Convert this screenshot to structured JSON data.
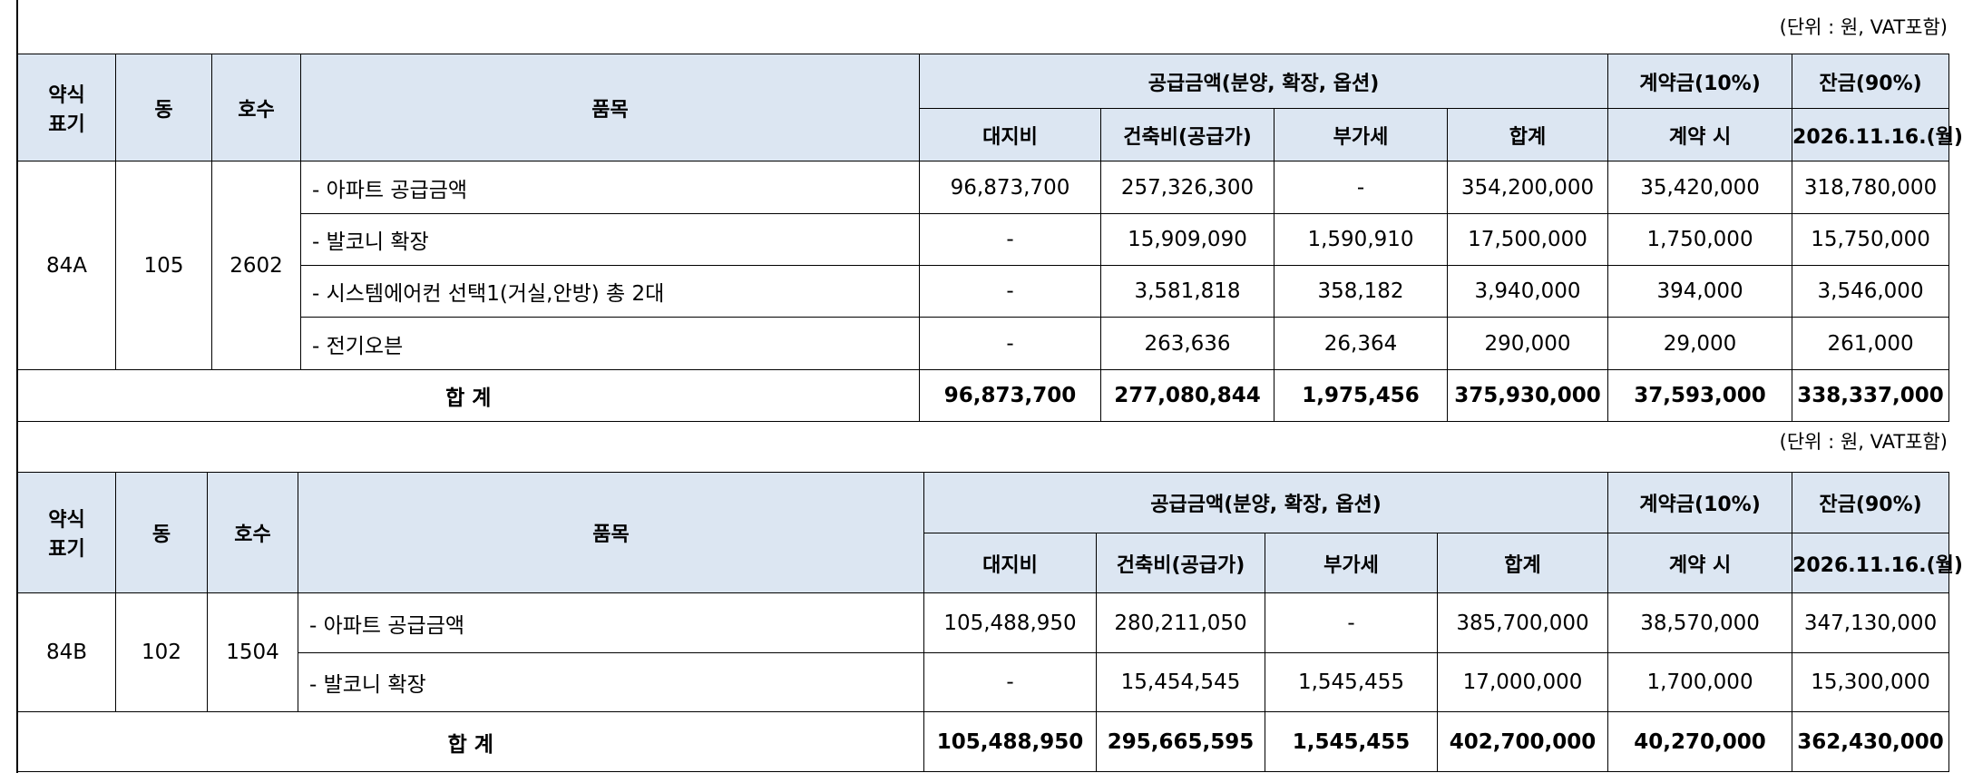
{
  "tables": [
    {
      "unit_note": "(단위 : 원, VAT포함)",
      "columns": {
        "type": [
          "약식",
          "표기"
        ],
        "dong": "동",
        "ho": "호수",
        "item": "품목",
        "supply": "공급금액(분양, 확장, 옵션)",
        "deposit": "계약금(10%)",
        "balance": "잔금(90%)",
        "sub": [
          "대지비",
          "건축비(공급가)",
          "부가세",
          "합계",
          "계약 시",
          "2026.11.16.(월)"
        ]
      },
      "unit": {
        "type": "84A",
        "dong": "105",
        "ho": "2602"
      },
      "rows": [
        {
          "item": "- 아파트 공급금액",
          "values": [
            "96,873,700",
            "257,326,300",
            "-",
            "354,200,000",
            "35,420,000",
            "318,780,000"
          ]
        },
        {
          "item": "- 발코니 확장",
          "values": [
            "-",
            "15,909,090",
            "1,590,910",
            "17,500,000",
            "1,750,000",
            "15,750,000"
          ]
        },
        {
          "item": "- 시스템에어컨 선택1(거실,안방) 총 2대",
          "values": [
            "-",
            "3,581,818",
            "358,182",
            "3,940,000",
            "394,000",
            "3,546,000"
          ]
        },
        {
          "item": "- 전기오븐",
          "values": [
            "-",
            "263,636",
            "26,364",
            "290,000",
            "29,000",
            "261,000"
          ]
        }
      ],
      "total": {
        "label": "합 계",
        "values": [
          "96,873,700",
          "277,080,844",
          "1,975,456",
          "375,930,000",
          "37,593,000",
          "338,337,000"
        ]
      }
    },
    {
      "unit_note": "(단위 : 원, VAT포함)",
      "columns": {
        "type": [
          "약식",
          "표기"
        ],
        "dong": "동",
        "ho": "호수",
        "item": "품목",
        "supply": "공급금액(분양, 확장, 옵션)",
        "deposit": "계약금(10%)",
        "balance": "잔금(90%)",
        "sub": [
          "대지비",
          "건축비(공급가)",
          "부가세",
          "합계",
          "계약 시",
          "2026.11.16.(월)"
        ]
      },
      "unit": {
        "type": "84B",
        "dong": "102",
        "ho": "1504"
      },
      "rows": [
        {
          "item": "- 아파트 공급금액",
          "values": [
            "105,488,950",
            "280,211,050",
            "-",
            "385,700,000",
            "38,570,000",
            "347,130,000"
          ]
        },
        {
          "item": "- 발코니 확장",
          "values": [
            "-",
            "15,454,545",
            "1,545,455",
            "17,000,000",
            "1,700,000",
            "15,300,000"
          ]
        }
      ],
      "total": {
        "label": "합 계",
        "values": [
          "105,488,950",
          "295,665,595",
          "1,545,455",
          "402,700,000",
          "40,270,000",
          "362,430,000"
        ]
      }
    }
  ]
}
